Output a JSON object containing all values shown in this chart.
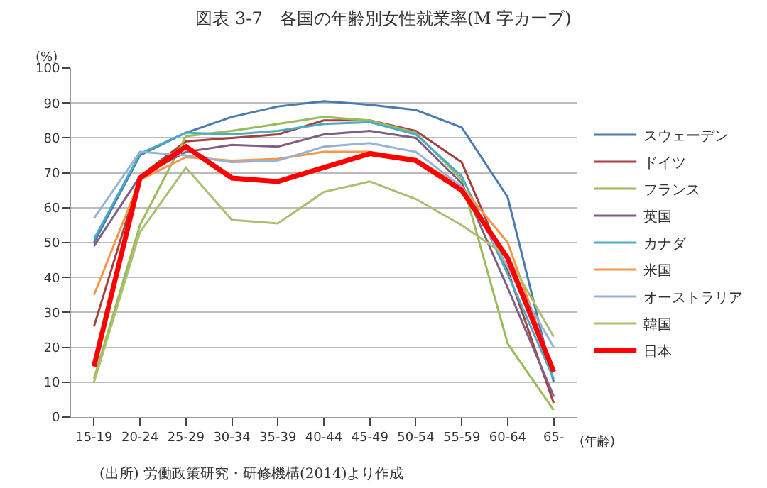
{
  "chart_data": {
    "type": "line",
    "title": "図表 3-7　各国の年齢別女性就業率(M 字カーブ)",
    "xlabel": "(年齢)",
    "ylabel": "(%)",
    "categories": [
      "15-19",
      "20-24",
      "25-29",
      "30-34",
      "35-39",
      "40-44",
      "45-49",
      "50-54",
      "55-59",
      "60-64",
      "65-"
    ],
    "series": [
      {
        "name": "スウェーデン",
        "color": "#4a7ab0",
        "values": [
          50,
          75,
          81.5,
          86,
          89,
          90.5,
          89.5,
          88,
          83,
          63,
          10
        ]
      },
      {
        "name": "ドイツ",
        "color": "#a5403e",
        "values": [
          26,
          69,
          79,
          80,
          81,
          85,
          85,
          82,
          73,
          42,
          4
        ]
      },
      {
        "name": "フランス",
        "color": "#9bbb59",
        "values": [
          11,
          55,
          80.5,
          82,
          84,
          86,
          85,
          81.5,
          68,
          21,
          2
        ]
      },
      {
        "name": "英国",
        "color": "#7f6084",
        "values": [
          49,
          69,
          76,
          78,
          77.5,
          81,
          82,
          80,
          67,
          37,
          6
        ]
      },
      {
        "name": "カナダ",
        "color": "#4bacc6",
        "values": [
          51,
          75.5,
          81.5,
          81,
          82,
          84,
          84.5,
          81,
          69,
          41,
          11
        ]
      },
      {
        "name": "米国",
        "color": "#f79646",
        "values": [
          35,
          68,
          74.5,
          73.5,
          74,
          76,
          76,
          74,
          66,
          50,
          13
        ]
      },
      {
        "name": "オーストラリア",
        "color": "#95b3d7",
        "values": [
          57,
          76,
          75,
          73,
          73.5,
          77.5,
          78.5,
          76,
          66,
          43,
          20
        ]
      },
      {
        "name": "韓国",
        "color": "#a8c070",
        "values": [
          10,
          53,
          71.5,
          56.5,
          55.5,
          64.5,
          67.5,
          62.5,
          55,
          46,
          23
        ]
      },
      {
        "name": "日本",
        "color": "#ff0000",
        "values": [
          14.5,
          68.5,
          77.5,
          68.5,
          67.5,
          71.5,
          75.5,
          73.5,
          65,
          45.5,
          13
        ]
      }
    ],
    "ylim": [
      0,
      100
    ],
    "yticks": [
      0,
      10,
      20,
      30,
      40,
      50,
      60,
      70,
      80,
      90,
      100
    ],
    "grid": "y",
    "legend": "right",
    "annotations": [
      "(出所) 労働政策研究・研修機構(2014)より作成"
    ]
  }
}
